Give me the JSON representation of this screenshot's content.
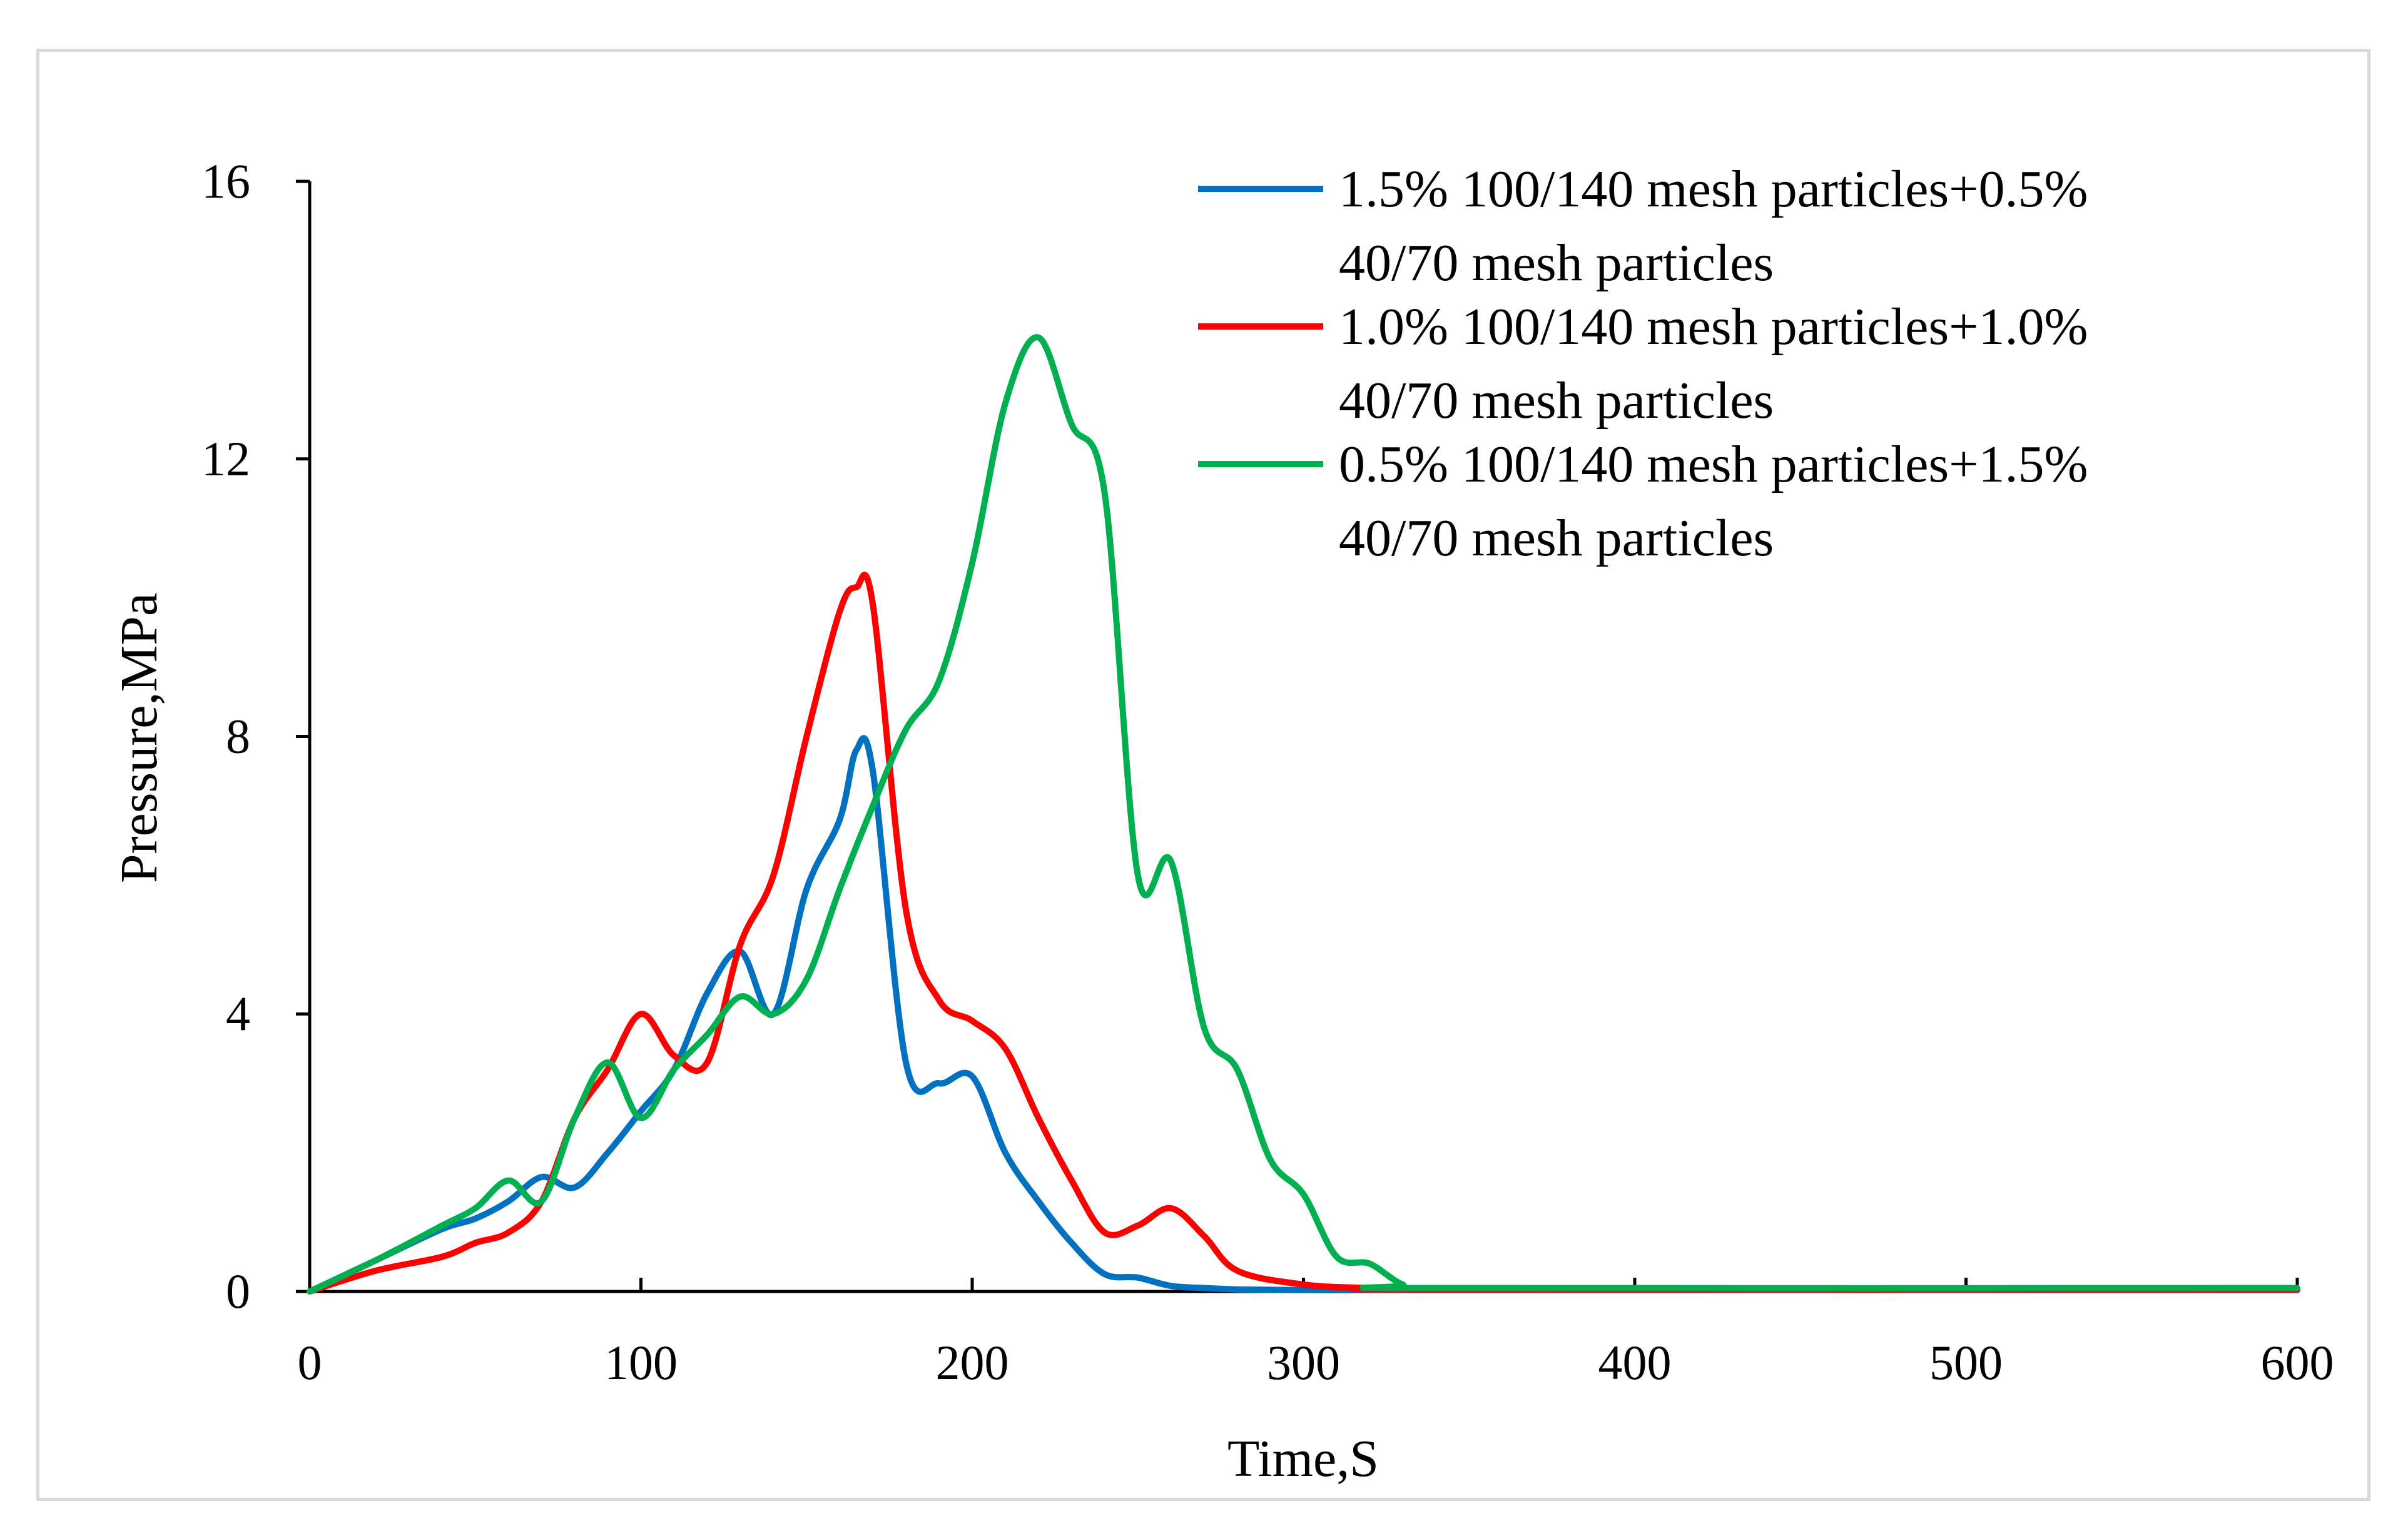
{
  "chart_data": {
    "type": "line",
    "title": "",
    "xlabel": "Time,S",
    "ylabel": "Pressure,MPa",
    "xlim": [
      0,
      600
    ],
    "ylim": [
      0,
      16
    ],
    "xticks": [
      0,
      100,
      200,
      300,
      400,
      500,
      600
    ],
    "yticks": [
      0,
      4,
      8,
      12,
      16
    ],
    "grid": false,
    "legend_position": "top-right",
    "series": [
      {
        "name": "1.5% 100/140 mesh particles+0.5% 40/70 mesh particles",
        "legend_lines": [
          "1.5% 100/140 mesh particles+0.5%",
          "40/70 mesh particles"
        ],
        "color": "#0070c0",
        "x": [
          0,
          20,
          40,
          50,
          60,
          70,
          80,
          90,
          100,
          110,
          120,
          130,
          140,
          150,
          160,
          165,
          170,
          180,
          190,
          200,
          210,
          220,
          230,
          240,
          250,
          260,
          270,
          280,
          300,
          320,
          340,
          600
        ],
        "y": [
          0,
          0.45,
          0.9,
          1.05,
          1.3,
          1.65,
          1.5,
          2.0,
          2.6,
          3.2,
          4.3,
          4.9,
          4.0,
          5.8,
          6.8,
          7.8,
          7.5,
          3.3,
          3.0,
          3.1,
          2.0,
          1.3,
          0.7,
          0.25,
          0.2,
          0.08,
          0.05,
          0.03,
          0.02,
          0.02,
          0.02,
          0.02
        ]
      },
      {
        "name": "1.0% 100/140 mesh particles+1.0% 40/70 mesh particles",
        "legend_lines": [
          "1.0% 100/140 mesh particles+1.0%",
          "40/70 mesh particles"
        ],
        "color": "#ff0000",
        "x": [
          0,
          20,
          40,
          50,
          60,
          70,
          80,
          90,
          100,
          110,
          120,
          130,
          140,
          150,
          160,
          165,
          170,
          180,
          190,
          200,
          210,
          220,
          230,
          240,
          250,
          260,
          270,
          280,
          300,
          320,
          340,
          600
        ],
        "y": [
          0,
          0.3,
          0.5,
          0.7,
          0.85,
          1.3,
          2.5,
          3.2,
          4.0,
          3.4,
          3.3,
          5.0,
          6.0,
          8.0,
          9.8,
          10.15,
          9.9,
          5.5,
          4.2,
          3.9,
          3.5,
          2.5,
          1.6,
          0.85,
          0.95,
          1.2,
          0.8,
          0.3,
          0.1,
          0.05,
          0.03,
          0.03
        ]
      },
      {
        "name": "0.5% 100/140 mesh particles+1.5% 40/70 mesh particles",
        "legend_lines": [
          "0.5% 100/140 mesh particles+1.5%",
          "40/70 mesh particles"
        ],
        "color": "#00b050",
        "x": [
          0,
          20,
          40,
          50,
          60,
          70,
          80,
          90,
          100,
          110,
          120,
          130,
          140,
          150,
          160,
          170,
          180,
          190,
          200,
          210,
          220,
          230,
          240,
          250,
          260,
          270,
          280,
          290,
          300,
          310,
          320,
          330,
          340,
          600
        ],
        "y": [
          0,
          0.45,
          0.95,
          1.2,
          1.6,
          1.3,
          2.5,
          3.3,
          2.5,
          3.2,
          3.7,
          4.25,
          4.0,
          4.5,
          5.8,
          7.0,
          8.1,
          8.8,
          10.5,
          12.8,
          13.75,
          12.5,
          11.5,
          6.0,
          6.2,
          3.8,
          3.2,
          1.9,
          1.4,
          0.5,
          0.4,
          0.1,
          0.05,
          0.05
        ]
      }
    ]
  }
}
